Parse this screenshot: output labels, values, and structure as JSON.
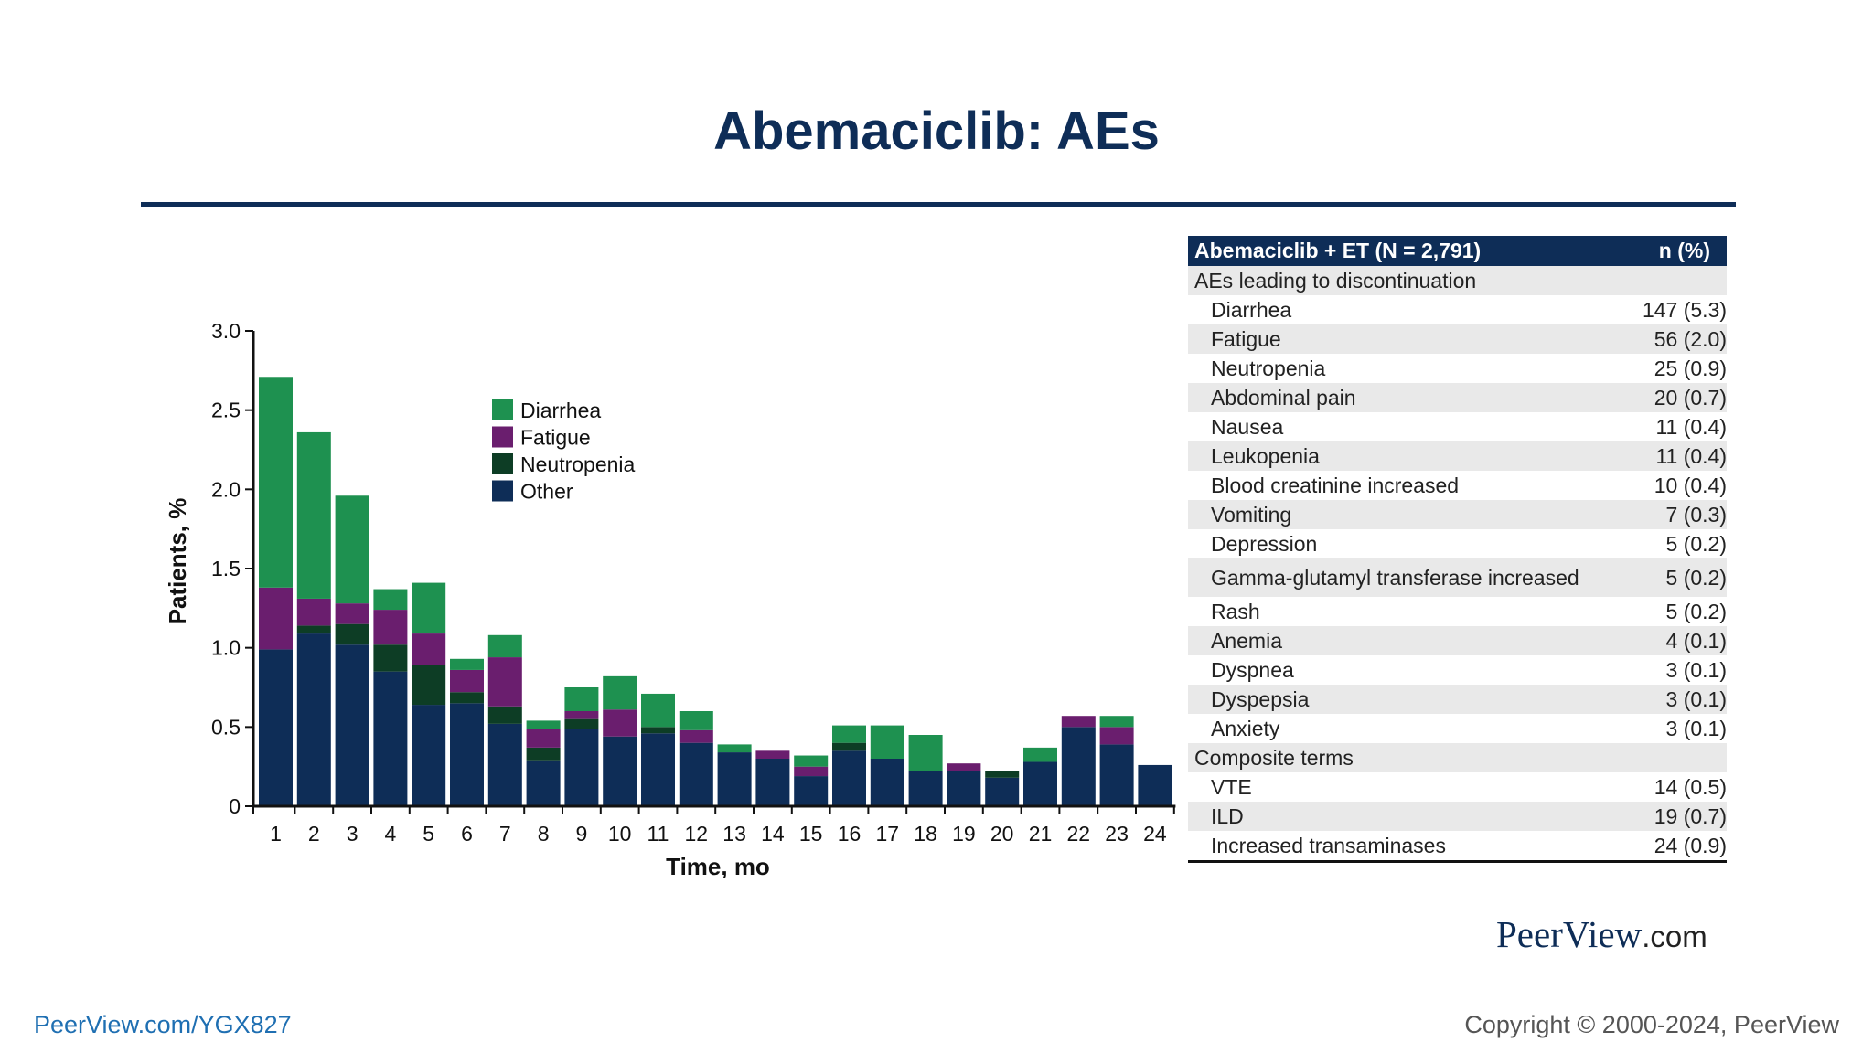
{
  "slide": {
    "title": "Abemaciclib: AEs",
    "footer_link": "PeerView.com/YGX827",
    "copyright": "Copyright © 2000-2024, PeerView",
    "brand_main": "PeerView",
    "brand_suffix": ".com"
  },
  "colors": {
    "title": "#0e2d57",
    "Diarrhea": "#1e9150",
    "Fatigue": "#6a1e6e",
    "Neutropenia": "#0d3d25",
    "Other": "#0e2d57",
    "table_header": "#0e2d57",
    "table_shade": "#e9e9e9"
  },
  "chart_data": {
    "type": "bar",
    "stacked": true,
    "xlabel": "Time, mo",
    "ylabel": "Patients, %",
    "ylim": [
      0,
      3.0
    ],
    "yticks": [
      "0",
      "0.5",
      "1.0",
      "1.5",
      "2.0",
      "2.5",
      "3.0"
    ],
    "grid": false,
    "legend_position": "upper-left-inside",
    "categories": [
      "1",
      "2",
      "3",
      "4",
      "5",
      "6",
      "7",
      "8",
      "9",
      "10",
      "11",
      "12",
      "13",
      "14",
      "15",
      "16",
      "17",
      "18",
      "19",
      "20",
      "21",
      "22",
      "23",
      "24"
    ],
    "series": [
      {
        "name": "Other",
        "values": [
          0.99,
          1.09,
          1.02,
          0.85,
          0.64,
          0.65,
          0.52,
          0.29,
          0.49,
          0.44,
          0.46,
          0.4,
          0.34,
          0.3,
          0.19,
          0.35,
          0.3,
          0.22,
          0.22,
          0.18,
          0.28,
          0.5,
          0.39,
          0.26
        ]
      },
      {
        "name": "Neutropenia",
        "values": [
          0.0,
          0.05,
          0.13,
          0.17,
          0.25,
          0.07,
          0.11,
          0.08,
          0.06,
          0.0,
          0.04,
          0.0,
          0.0,
          0.0,
          0.0,
          0.05,
          0.0,
          0.0,
          0.0,
          0.04,
          0.0,
          0.0,
          0.0,
          0.0
        ]
      },
      {
        "name": "Fatigue",
        "values": [
          0.39,
          0.17,
          0.13,
          0.22,
          0.2,
          0.14,
          0.31,
          0.12,
          0.05,
          0.17,
          0.0,
          0.08,
          0.0,
          0.05,
          0.06,
          0.0,
          0.0,
          0.0,
          0.05,
          0.0,
          0.0,
          0.07,
          0.11,
          0.0
        ]
      },
      {
        "name": "Diarrhea",
        "values": [
          1.33,
          1.05,
          0.68,
          0.13,
          0.32,
          0.07,
          0.14,
          0.05,
          0.15,
          0.21,
          0.21,
          0.12,
          0.05,
          0.0,
          0.07,
          0.11,
          0.21,
          0.23,
          0.0,
          0.0,
          0.09,
          0.0,
          0.07,
          0.0
        ]
      }
    ],
    "legend": [
      "Diarrhea",
      "Fatigue",
      "Neutropenia",
      "Other"
    ]
  },
  "table": {
    "header": {
      "label": "Abemaciclib + ET (N = 2,791)",
      "value": "n (%)"
    },
    "rows": [
      {
        "label": "AEs leading to discontinuation",
        "value": "",
        "kind": "section"
      },
      {
        "label": "Diarrhea",
        "value": "147 (5.3)",
        "kind": "item"
      },
      {
        "label": "Fatigue",
        "value": "56 (2.0)",
        "kind": "item"
      },
      {
        "label": "Neutropenia",
        "value": "25 (0.9)",
        "kind": "item"
      },
      {
        "label": "Abdominal pain",
        "value": "20 (0.7)",
        "kind": "item"
      },
      {
        "label": "Nausea",
        "value": "11 (0.4)",
        "kind": "item"
      },
      {
        "label": "Leukopenia",
        "value": "11 (0.4)",
        "kind": "item"
      },
      {
        "label": "Blood creatinine increased",
        "value": "10 (0.4)",
        "kind": "item"
      },
      {
        "label": "Vomiting",
        "value": "7 (0.3)",
        "kind": "item"
      },
      {
        "label": "Depression",
        "value": "5 (0.2)",
        "kind": "item"
      },
      {
        "label": "Gamma-glutamyl transferase increased",
        "value": "5 (0.2)",
        "kind": "item"
      },
      {
        "label": "Rash",
        "value": "5 (0.2)",
        "kind": "item"
      },
      {
        "label": "Anemia",
        "value": "4 (0.1)",
        "kind": "item"
      },
      {
        "label": "Dyspnea",
        "value": "3 (0.1)",
        "kind": "item"
      },
      {
        "label": "Dyspepsia",
        "value": "3 (0.1)",
        "kind": "item"
      },
      {
        "label": "Anxiety",
        "value": "3 (0.1)",
        "kind": "item"
      },
      {
        "label": "Composite terms",
        "value": "",
        "kind": "section"
      },
      {
        "label": "VTE",
        "value": "14 (0.5)",
        "kind": "item"
      },
      {
        "label": "ILD",
        "value": "19 (0.7)",
        "kind": "item"
      },
      {
        "label": "Increased transaminases",
        "value": "24 (0.9)",
        "kind": "item"
      }
    ]
  }
}
